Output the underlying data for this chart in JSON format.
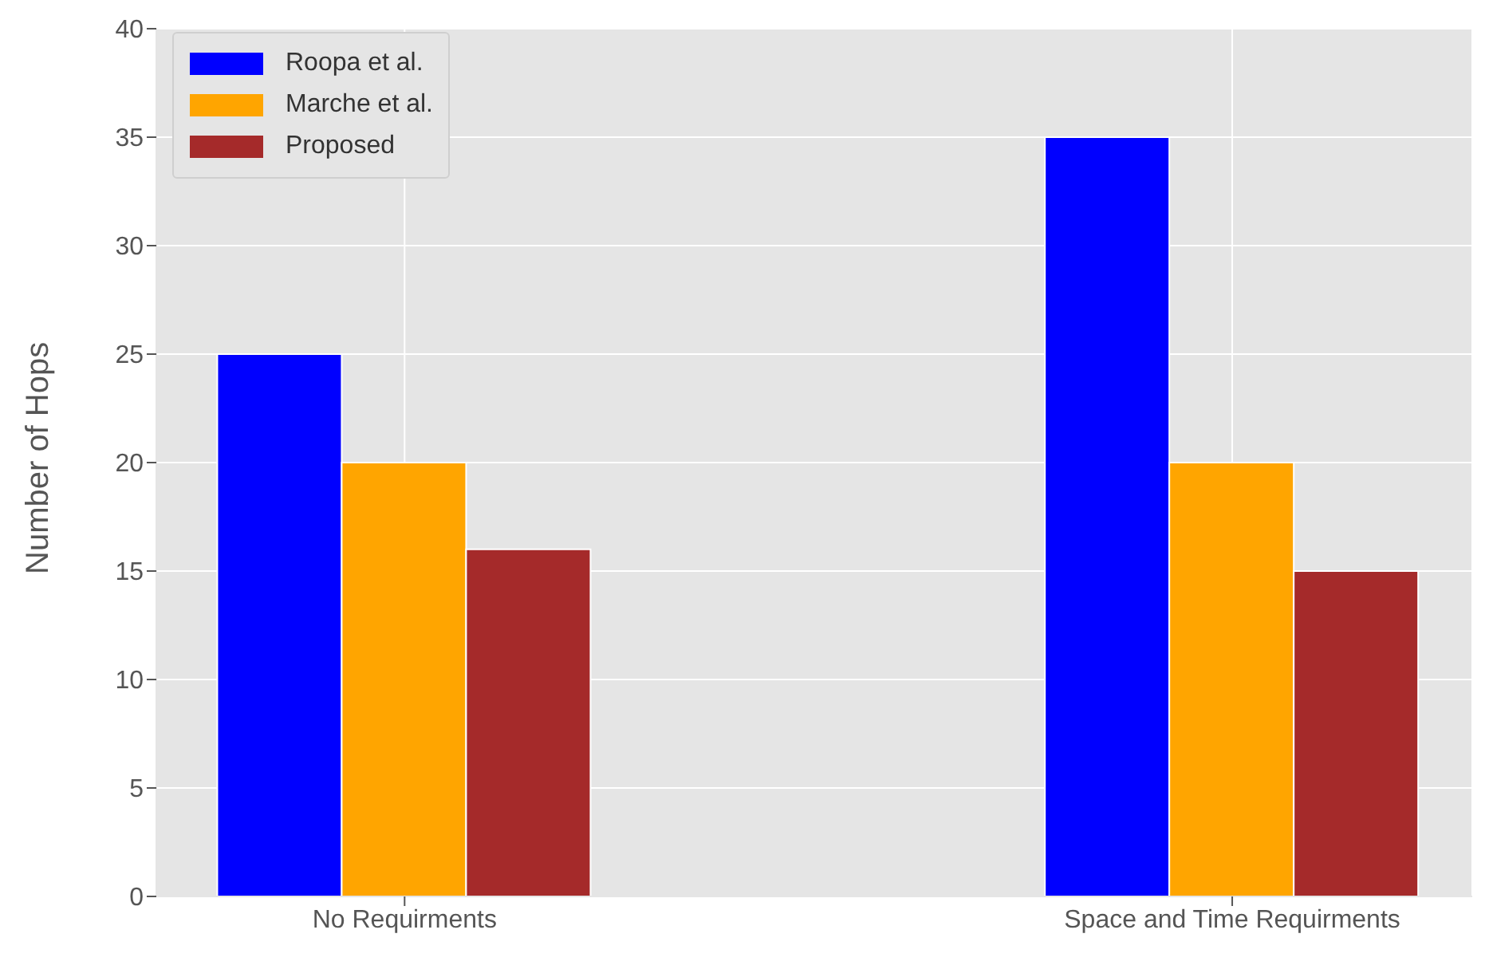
{
  "chart_data": {
    "type": "bar",
    "ylabel": "Number of Hops",
    "categories": [
      "No Requirments",
      "Space and Time Requirments"
    ],
    "series": [
      {
        "name": "Roopa et al.",
        "color": "#0000ff",
        "values": [
          25,
          35
        ]
      },
      {
        "name": "Marche et al.",
        "color": "#ffa500",
        "values": [
          20,
          20
        ]
      },
      {
        "name": "Proposed",
        "color": "#a52a2a",
        "values": [
          16,
          15
        ]
      }
    ],
    "ylim": [
      0,
      40
    ],
    "yticks": [
      0,
      5,
      10,
      15,
      20,
      25,
      30,
      35,
      40
    ],
    "grid": true,
    "legend": "top left"
  }
}
